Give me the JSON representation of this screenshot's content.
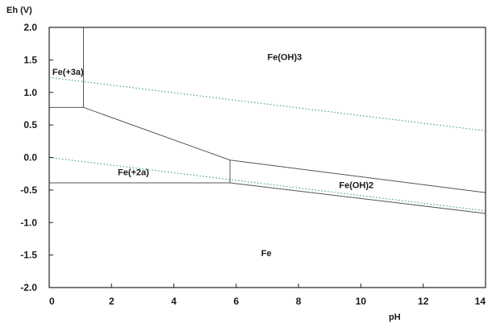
{
  "chart_data": {
    "type": "line",
    "ylabel": "Eh (V)",
    "xlabel": "pH",
    "xlim": [
      0,
      14
    ],
    "ylim": [
      -2.0,
      2.0
    ],
    "xticks": [
      "0",
      "2",
      "4",
      "6",
      "8",
      "10",
      "12",
      "14"
    ],
    "yticks": [
      "2.0",
      "1.5",
      "1.0",
      "0.5",
      "0.0",
      "-0.5",
      "-1.0",
      "-1.5",
      "-2.0"
    ],
    "grid": false,
    "boundaries": [
      {
        "points": [
          [
            1.1,
            2.0
          ],
          [
            1.1,
            0.77
          ]
        ]
      },
      {
        "points": [
          [
            0,
            0.77
          ],
          [
            1.1,
            0.77
          ]
        ]
      },
      {
        "points": [
          [
            1.1,
            0.77
          ],
          [
            5.8,
            -0.04
          ]
        ]
      },
      {
        "points": [
          [
            5.8,
            -0.04
          ],
          [
            14,
            -0.54
          ]
        ]
      },
      {
        "points": [
          [
            5.8,
            -0.04
          ],
          [
            5.8,
            -0.39
          ]
        ]
      },
      {
        "points": [
          [
            0,
            -0.39
          ],
          [
            5.8,
            -0.39
          ]
        ]
      },
      {
        "points": [
          [
            5.8,
            -0.39
          ],
          [
            14,
            -0.86
          ]
        ]
      }
    ],
    "water_lines": [
      {
        "style": "dotted",
        "points": [
          [
            0,
            1.23
          ],
          [
            14,
            0.41
          ]
        ]
      },
      {
        "style": "dotted",
        "points": [
          [
            0,
            0.0
          ],
          [
            14,
            -0.82
          ]
        ]
      }
    ],
    "regions": [
      {
        "label": "Fe(OH)3",
        "x": 7.0,
        "y": 1.5
      },
      {
        "label": "Fe(+3a)",
        "x": 0.1,
        "y": 1.27
      },
      {
        "label": "Fe(+2a)",
        "x": 2.2,
        "y": -0.27
      },
      {
        "label": "Fe(OH)2",
        "x": 9.3,
        "y": -0.47
      },
      {
        "label": "Fe",
        "x": 6.8,
        "y": -1.52
      }
    ],
    "colors": {
      "boundary": "#555555",
      "water_line": "#3a9a8e",
      "frame": "#222222"
    }
  }
}
